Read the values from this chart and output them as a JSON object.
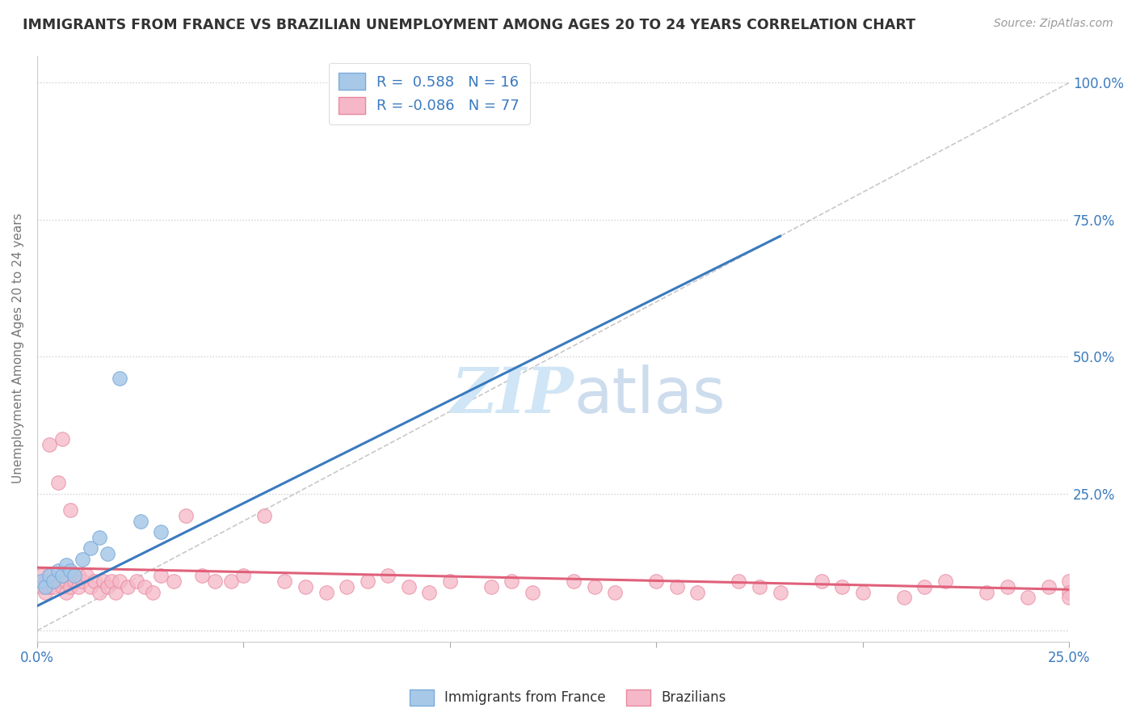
{
  "title": "IMMIGRANTS FROM FRANCE VS BRAZILIAN UNEMPLOYMENT AMONG AGES 20 TO 24 YEARS CORRELATION CHART",
  "source": "Source: ZipAtlas.com",
  "x_lim": [
    0,
    0.25
  ],
  "y_lim": [
    -0.02,
    1.05
  ],
  "y_tick_vals": [
    0,
    0.25,
    0.5,
    0.75,
    1.0
  ],
  "y_tick_labels": [
    "",
    "25.0%",
    "50.0%",
    "75.0%",
    "100.0%"
  ],
  "blue_color": "#a8c8e8",
  "blue_edge_color": "#7aabda",
  "pink_color": "#f5b8c8",
  "pink_edge_color": "#e888a0",
  "blue_line_color": "#3a7abf",
  "pink_line_color": "#e0607a",
  "ref_line_color": "#bbbbbb",
  "grid_color": "#d0d0d0",
  "watermark_color": "#d0e5f5",
  "background_color": "#ffffff",
  "legend_text_color": "#3a7abf",
  "right_axis_color": "#3a7abf",
  "ylabel_color": "#777777",
  "title_color": "#333333",
  "source_color": "#999999",
  "blue_scatter_x": [
    0.001,
    0.002,
    0.003,
    0.004,
    0.005,
    0.006,
    0.007,
    0.008,
    0.009,
    0.011,
    0.013,
    0.015,
    0.017,
    0.02,
    0.025,
    0.03
  ],
  "blue_scatter_y": [
    0.09,
    0.08,
    0.1,
    0.09,
    0.11,
    0.1,
    0.12,
    0.11,
    0.1,
    0.13,
    0.15,
    0.17,
    0.14,
    0.46,
    0.2,
    0.18
  ],
  "pink_scatter_x": [
    0.001,
    0.001,
    0.002,
    0.002,
    0.003,
    0.003,
    0.003,
    0.004,
    0.004,
    0.005,
    0.005,
    0.006,
    0.006,
    0.007,
    0.007,
    0.008,
    0.008,
    0.009,
    0.01,
    0.01,
    0.011,
    0.012,
    0.013,
    0.014,
    0.015,
    0.016,
    0.017,
    0.018,
    0.019,
    0.02,
    0.022,
    0.024,
    0.026,
    0.028,
    0.03,
    0.033,
    0.036,
    0.04,
    0.043,
    0.047,
    0.05,
    0.055,
    0.06,
    0.065,
    0.07,
    0.075,
    0.08,
    0.085,
    0.09,
    0.095,
    0.1,
    0.11,
    0.115,
    0.12,
    0.13,
    0.135,
    0.14,
    0.15,
    0.155,
    0.16,
    0.17,
    0.175,
    0.18,
    0.19,
    0.195,
    0.2,
    0.21,
    0.215,
    0.22,
    0.23,
    0.235,
    0.24,
    0.245,
    0.25,
    0.25,
    0.25
  ],
  "pink_scatter_y": [
    0.1,
    0.08,
    0.09,
    0.07,
    0.34,
    0.1,
    0.08,
    0.09,
    0.08,
    0.27,
    0.09,
    0.08,
    0.35,
    0.09,
    0.07,
    0.08,
    0.22,
    0.09,
    0.1,
    0.08,
    0.09,
    0.1,
    0.08,
    0.09,
    0.07,
    0.09,
    0.08,
    0.09,
    0.07,
    0.09,
    0.08,
    0.09,
    0.08,
    0.07,
    0.1,
    0.09,
    0.21,
    0.1,
    0.09,
    0.09,
    0.1,
    0.21,
    0.09,
    0.08,
    0.07,
    0.08,
    0.09,
    0.1,
    0.08,
    0.07,
    0.09,
    0.08,
    0.09,
    0.07,
    0.09,
    0.08,
    0.07,
    0.09,
    0.08,
    0.07,
    0.09,
    0.08,
    0.07,
    0.09,
    0.08,
    0.07,
    0.06,
    0.08,
    0.09,
    0.07,
    0.08,
    0.06,
    0.08,
    0.09,
    0.07,
    0.06
  ],
  "blue_trend_x": [
    0.0,
    0.18
  ],
  "blue_trend_y": [
    0.045,
    0.72
  ],
  "pink_trend_x": [
    0.0,
    0.25
  ],
  "pink_trend_y": [
    0.115,
    0.075
  ]
}
